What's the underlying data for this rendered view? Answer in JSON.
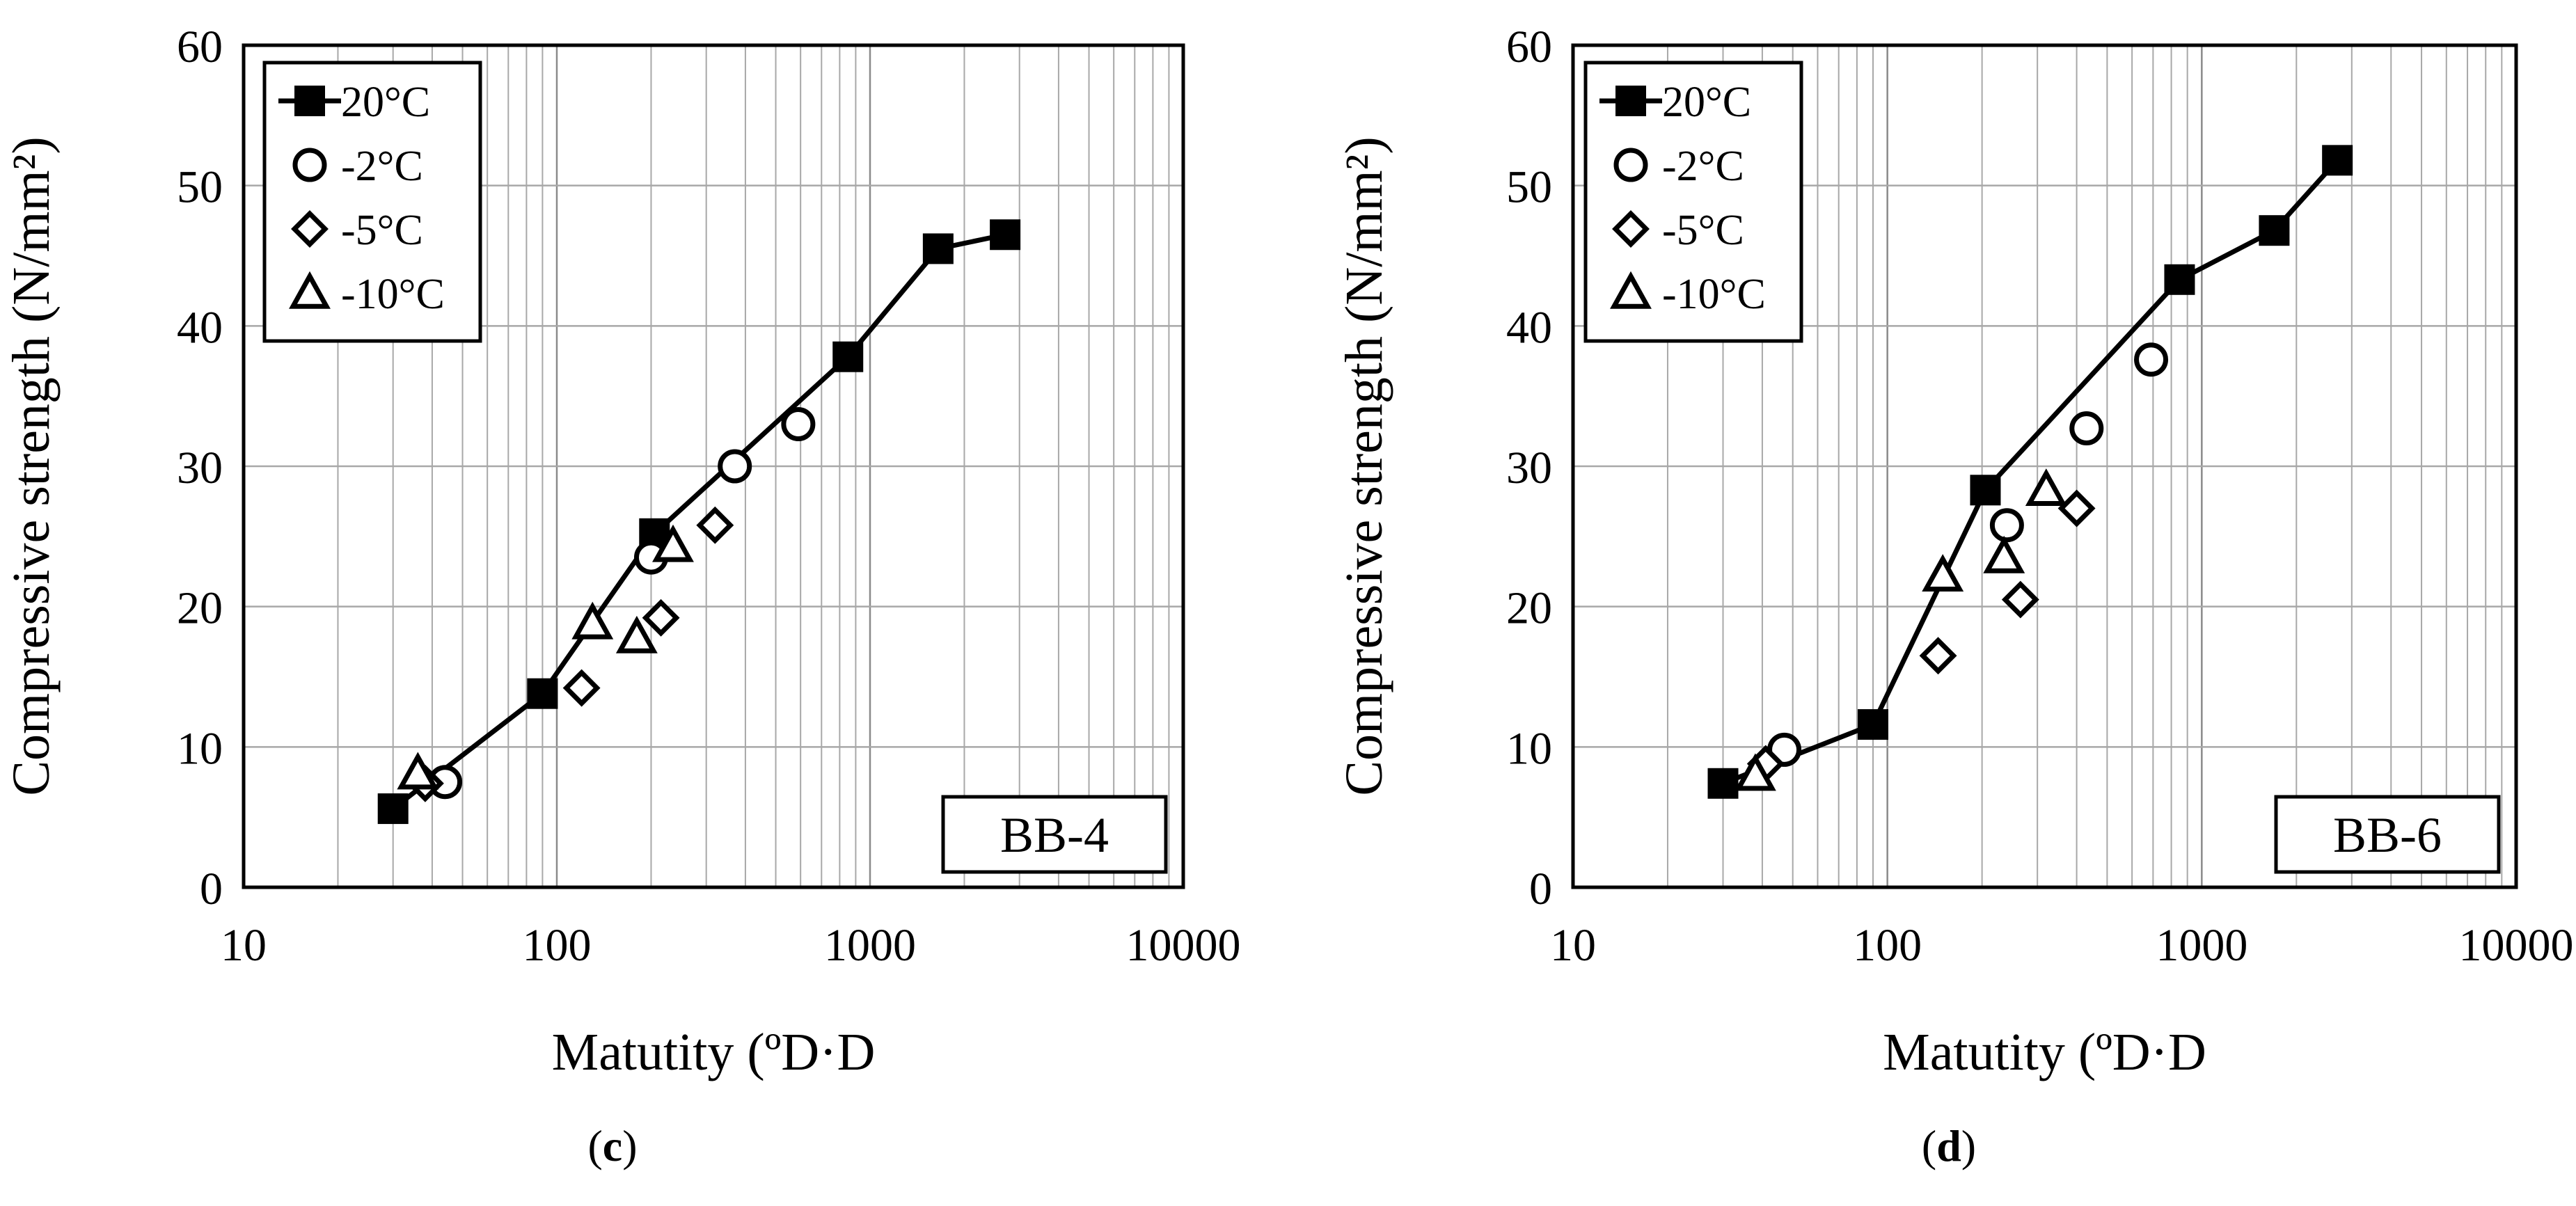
{
  "chart_data": [
    {
      "type": "scatter",
      "panel_label": "c",
      "sample_label": "BB-4",
      "title": "",
      "xlabel": "Matutity (ºD·D",
      "ylabel": "Compressive strength (N/mm²)",
      "xscale": "log",
      "xlim": [
        10,
        10000
      ],
      "ylim": [
        0,
        60
      ],
      "xticks": [
        "10",
        "100",
        "1000",
        "10000"
      ],
      "yticks": [
        "0",
        "10",
        "20",
        "30",
        "40",
        "50",
        "60"
      ],
      "grid": true,
      "legend": "top-left",
      "series": [
        {
          "name": "20°C",
          "marker": "square-filled",
          "line": true,
          "x": [
            30,
            90,
            205,
            850,
            1650,
            2700
          ],
          "y": [
            5.6,
            13.8,
            25.2,
            37.8,
            45.5,
            46.5
          ]
        },
        {
          "name": "-2°C",
          "marker": "circle-open",
          "line": false,
          "x": [
            44,
            200,
            370,
            590
          ],
          "y": [
            7.5,
            23.5,
            30.0,
            33.0
          ]
        },
        {
          "name": "-5°C",
          "marker": "diamond-open",
          "line": false,
          "x": [
            38,
            120,
            215,
            320
          ],
          "y": [
            7.4,
            14.2,
            19.2,
            25.8
          ]
        },
        {
          "name": "-10°C",
          "marker": "triangle-open",
          "line": false,
          "x": [
            36,
            130,
            180,
            235
          ],
          "y": [
            8.1,
            18.8,
            17.8,
            24.3
          ]
        }
      ]
    },
    {
      "type": "scatter",
      "panel_label": "d",
      "sample_label": "BB-6",
      "title": "",
      "xlabel": "Matutity (ºD·D",
      "ylabel": "Compressive strength (N/mm²)",
      "xscale": "log",
      "xlim": [
        10,
        10000
      ],
      "ylim": [
        0,
        60
      ],
      "xticks": [
        "10",
        "100",
        "1000",
        "10000"
      ],
      "yticks": [
        "0",
        "10",
        "20",
        "30",
        "40",
        "50",
        "60"
      ],
      "grid": true,
      "legend": "top-left",
      "series": [
        {
          "name": "20°C",
          "marker": "square-filled",
          "line": true,
          "x": [
            30,
            90,
            205,
            850,
            1700,
            2700
          ],
          "y": [
            7.4,
            11.6,
            28.3,
            43.3,
            46.8,
            51.8
          ]
        },
        {
          "name": "-2°C",
          "marker": "circle-open",
          "line": false,
          "x": [
            47,
            240,
            430,
            690
          ],
          "y": [
            9.8,
            25.8,
            32.7,
            37.6
          ]
        },
        {
          "name": "-5°C",
          "marker": "diamond-open",
          "line": false,
          "x": [
            41,
            145,
            265,
            400
          ],
          "y": [
            8.8,
            16.5,
            20.5,
            27.0
          ]
        },
        {
          "name": "-10°C",
          "marker": "triangle-open",
          "line": false,
          "x": [
            38,
            150,
            235,
            320
          ],
          "y": [
            8.0,
            22.2,
            23.5,
            28.3
          ]
        }
      ]
    }
  ]
}
